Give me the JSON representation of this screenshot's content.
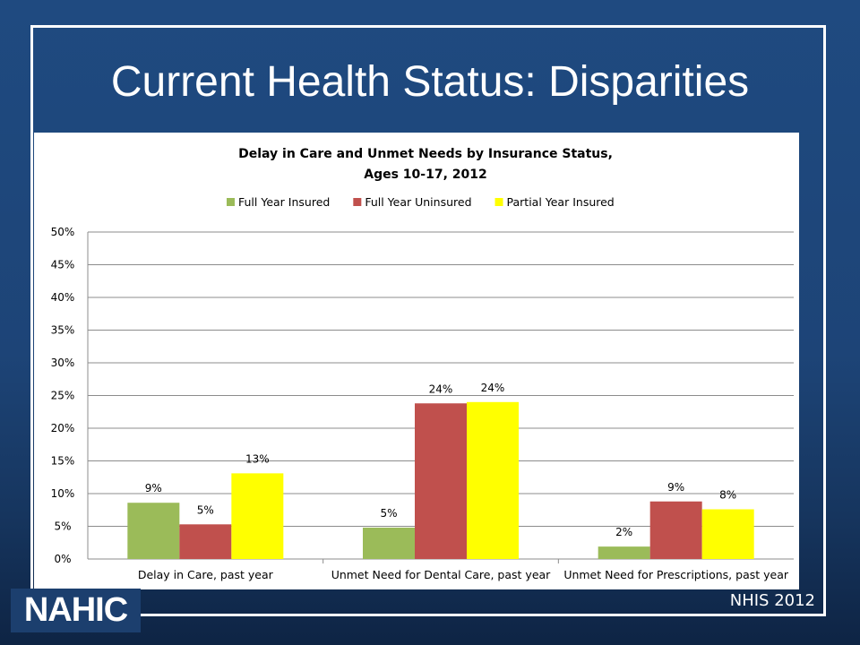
{
  "slide": {
    "title": "Current Health Status: Disparities",
    "logo_text": "NAHIC",
    "source": "NHIS 2012"
  },
  "colors": {
    "background": "#1f4a80",
    "series": [
      "#9bbb59",
      "#c0504d",
      "#ffff00"
    ]
  },
  "chart_data": {
    "type": "bar",
    "title": "Delay in Care and Unmet Needs by Insurance Status,",
    "subtitle": "Ages 10-17, 2012",
    "categories": [
      "Delay in Care, past year",
      "Unmet Need for Dental Care, past year",
      "Unmet Need for Prescriptions, past year"
    ],
    "series": [
      {
        "name": "Full Year Insured",
        "values": [
          8.6,
          4.8,
          1.9
        ],
        "labels": [
          "9%",
          "5%",
          "2%"
        ]
      },
      {
        "name": "Full Year Uninsured",
        "values": [
          5.3,
          23.8,
          8.8
        ],
        "labels": [
          "5%",
          "24%",
          "9%"
        ]
      },
      {
        "name": "Partial Year Insured",
        "values": [
          13.1,
          24.0,
          7.6
        ],
        "labels": [
          "13%",
          "24%",
          "8%"
        ]
      }
    ],
    "ylim": [
      0,
      50
    ],
    "yticks": [
      "0%",
      "5%",
      "10%",
      "15%",
      "20%",
      "25%",
      "30%",
      "35%",
      "40%",
      "45%",
      "50%"
    ],
    "legend_position": "top",
    "grid": true
  }
}
